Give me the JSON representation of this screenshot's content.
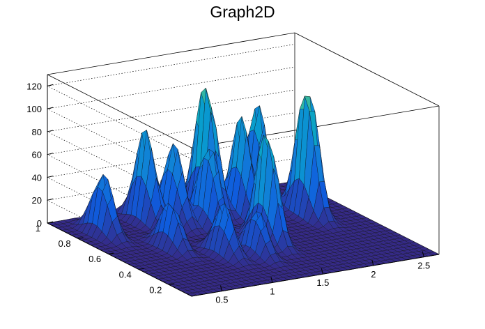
{
  "chart_data": {
    "type": "surface",
    "title": "Graph2D",
    "x_ticks": [
      "0.5",
      "1",
      "1.5",
      "2",
      "2.5"
    ],
    "y_ticks": [
      "0.2",
      "0.4",
      "0.6",
      "0.8",
      "1"
    ],
    "z_ticks": [
      "0",
      "20",
      "40",
      "60",
      "80",
      "100",
      "120"
    ],
    "x_range": [
      0.2,
      2.65
    ],
    "y_range": [
      0.05,
      1.0
    ],
    "z_range": [
      0,
      130
    ],
    "grid": true,
    "colormap": "parula",
    "peaks": [
      {
        "x": 0.45,
        "y": 0.8,
        "z": 55
      },
      {
        "x": 0.75,
        "y": 0.55,
        "z": 42
      },
      {
        "x": 0.95,
        "y": 0.85,
        "z": 82
      },
      {
        "x": 1.15,
        "y": 0.8,
        "z": 70
      },
      {
        "x": 1.05,
        "y": 0.4,
        "z": 45
      },
      {
        "x": 1.35,
        "y": 0.7,
        "z": 75
      },
      {
        "x": 1.55,
        "y": 0.85,
        "z": 118
      },
      {
        "x": 1.75,
        "y": 0.75,
        "z": 88
      },
      {
        "x": 1.55,
        "y": 0.45,
        "z": 102
      },
      {
        "x": 2.05,
        "y": 0.85,
        "z": 90
      },
      {
        "x": 2.25,
        "y": 0.65,
        "z": 120
      },
      {
        "x": 1.3,
        "y": 0.35,
        "z": 40
      }
    ]
  }
}
